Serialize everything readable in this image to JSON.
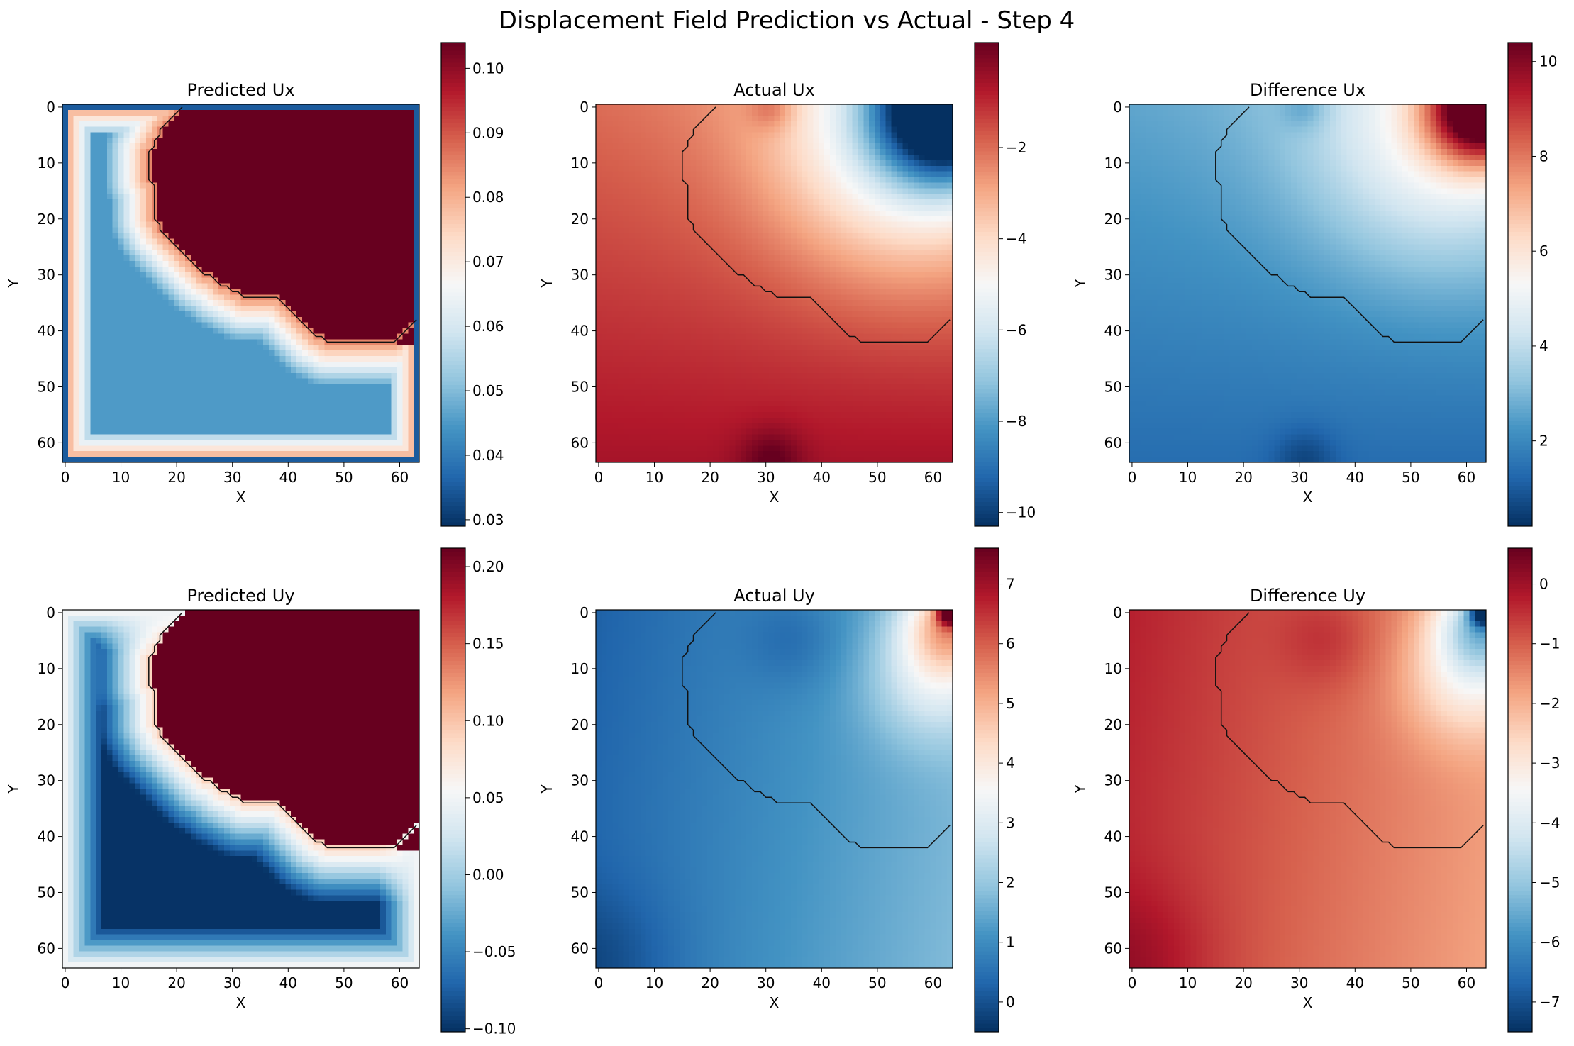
{
  "chart_data": {
    "suptitle": "Displacement Field Prediction vs Actual - Step 4",
    "grid_size": 64,
    "boundary_x": [
      21,
      20,
      19,
      18,
      17,
      17,
      16,
      16,
      15,
      15,
      15,
      15,
      15,
      15,
      16,
      16,
      16,
      16,
      16,
      16,
      16,
      17,
      17,
      18,
      19,
      20,
      21,
      22,
      23,
      24,
      25,
      26,
      27,
      28,
      29,
      30,
      31,
      32,
      33,
      34,
      35,
      36,
      37,
      38,
      39,
      40,
      41,
      42,
      43,
      44,
      45,
      46,
      47,
      48,
      49,
      50,
      51,
      52,
      53,
      54,
      55,
      56,
      57,
      58,
      59,
      60,
      61,
      62,
      63
    ],
    "boundary_y": [
      0,
      1,
      2,
      3,
      4,
      5,
      6,
      7,
      8,
      9,
      10,
      11,
      12,
      13,
      14,
      15,
      16,
      17,
      18,
      19,
      20,
      21,
      22,
      23,
      24,
      25,
      26,
      27,
      28,
      29,
      30,
      30,
      31,
      32,
      32,
      33,
      33,
      34,
      34,
      34,
      34,
      34,
      34,
      34,
      35,
      36,
      37,
      38,
      39,
      40,
      41,
      41,
      42,
      42,
      42,
      42,
      42,
      42,
      42,
      42,
      42,
      42,
      42,
      42,
      42,
      41,
      40,
      39,
      38
    ],
    "panels": [
      {
        "title": "Predicted Ux",
        "type": "heatmap",
        "xlabel": "X",
        "ylabel": "Y",
        "x_ticks": [
          "0",
          "10",
          "20",
          "30",
          "40",
          "50",
          "60"
        ],
        "y_ticks": [
          "0",
          "10",
          "20",
          "30",
          "40",
          "50",
          "60"
        ],
        "vmin": 0.029,
        "vmax": 0.104,
        "colorbar_ticks": [
          0.03,
          0.04,
          0.05,
          0.06,
          0.07,
          0.08,
          0.09,
          0.1
        ],
        "colorbar_labels": [
          "0.03",
          "0.04",
          "0.05",
          "0.06",
          "0.07",
          "0.08",
          "0.09",
          "0.10"
        ],
        "field": "pred_ux"
      },
      {
        "title": "Actual Ux",
        "type": "heatmap",
        "xlabel": "X",
        "ylabel": "Y",
        "x_ticks": [
          "0",
          "10",
          "20",
          "30",
          "40",
          "50",
          "60"
        ],
        "y_ticks": [
          "0",
          "10",
          "20",
          "30",
          "40",
          "50",
          "60"
        ],
        "vmin": -10.3,
        "vmax": 0.3,
        "colorbar_ticks": [
          -10,
          -8,
          -6,
          -4,
          -2
        ],
        "colorbar_labels": [
          "−10",
          "−8",
          "−6",
          "−4",
          "−2"
        ],
        "field": "act_ux"
      },
      {
        "title": "Difference Ux",
        "type": "heatmap",
        "xlabel": "X",
        "ylabel": "Y",
        "x_ticks": [
          "0",
          "10",
          "20",
          "30",
          "40",
          "50",
          "60"
        ],
        "y_ticks": [
          "0",
          "10",
          "20",
          "30",
          "40",
          "50",
          "60"
        ],
        "vmin": 0.2,
        "vmax": 10.4,
        "colorbar_ticks": [
          2,
          4,
          6,
          8,
          10
        ],
        "colorbar_labels": [
          "2",
          "4",
          "6",
          "8",
          "10"
        ],
        "field": "diff_ux"
      },
      {
        "title": "Predicted Uy",
        "type": "heatmap",
        "xlabel": "X",
        "ylabel": "Y",
        "x_ticks": [
          "0",
          "10",
          "20",
          "30",
          "40",
          "50",
          "60"
        ],
        "y_ticks": [
          "0",
          "10",
          "20",
          "30",
          "40",
          "50",
          "60"
        ],
        "vmin": -0.102,
        "vmax": 0.212,
        "colorbar_ticks": [
          -0.1,
          -0.05,
          0,
          0.05,
          0.1,
          0.15,
          0.2
        ],
        "colorbar_labels": [
          "−0.10",
          "−0.05",
          "0.00",
          "0.05",
          "0.10",
          "0.15",
          "0.20"
        ],
        "field": "pred_uy"
      },
      {
        "title": "Actual Uy",
        "type": "heatmap",
        "xlabel": "X",
        "ylabel": "Y",
        "x_ticks": [
          "0",
          "10",
          "20",
          "30",
          "40",
          "50",
          "60"
        ],
        "y_ticks": [
          "0",
          "10",
          "20",
          "30",
          "40",
          "50",
          "60"
        ],
        "vmin": -0.5,
        "vmax": 7.6,
        "colorbar_ticks": [
          0,
          1,
          2,
          3,
          4,
          5,
          6,
          7
        ],
        "colorbar_labels": [
          "0",
          "1",
          "2",
          "3",
          "4",
          "5",
          "6",
          "7"
        ],
        "field": "act_uy"
      },
      {
        "title": "Difference Uy",
        "type": "heatmap",
        "xlabel": "X",
        "ylabel": "Y",
        "x_ticks": [
          "0",
          "10",
          "20",
          "30",
          "40",
          "50",
          "60"
        ],
        "y_ticks": [
          "0",
          "10",
          "20",
          "30",
          "40",
          "50",
          "60"
        ],
        "vmin": -7.5,
        "vmax": 0.6,
        "colorbar_ticks": [
          -7,
          -6,
          -5,
          -4,
          -3,
          -2,
          -1,
          0
        ],
        "colorbar_labels": [
          "−7",
          "−6",
          "−5",
          "−4",
          "−3",
          "−2",
          "−1",
          "0"
        ],
        "field": "diff_uy"
      }
    ]
  }
}
